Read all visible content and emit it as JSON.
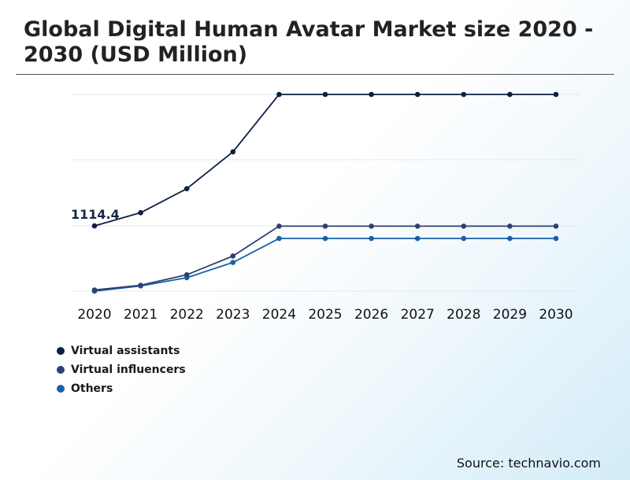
{
  "title": "Global Digital Human Avatar Market size 2020 - 2030 (USD Million)",
  "source": "Source: technavio.com",
  "colors": {
    "virtual_assistants": "#0c1f44",
    "virtual_influencers": "#2e4070",
    "others": "#1662a8",
    "grid": "#e3e8ee",
    "annotation": "#16254a"
  },
  "chart_data": {
    "type": "line",
    "title": "Global Digital Human Avatar Market size 2020 - 2030 (USD Million)",
    "xlabel": "",
    "ylabel": "",
    "categories": [
      "2020",
      "2021",
      "2022",
      "2023",
      "2024",
      "2025",
      "2026",
      "2027",
      "2028",
      "2029",
      "2030"
    ],
    "series": [
      {
        "name": "Virtual assistants",
        "color": "#0c1f44",
        "values": [
          1114.4,
          1340,
          1750,
          2380,
          3360,
          3360,
          3360,
          3360,
          3360,
          3360,
          3360
        ]
      },
      {
        "name": "Virtual influencers",
        "color": "#2e4070",
        "values": [
          20,
          100,
          280,
          600,
          1110,
          1110,
          1110,
          1110,
          1110,
          1110,
          1110
        ]
      },
      {
        "name": "Others",
        "color": "#1662a8",
        "values": [
          0,
          90,
          230,
          490,
          900,
          900,
          900,
          900,
          900,
          900,
          900
        ]
      }
    ],
    "annotations": [
      {
        "series": "Virtual assistants",
        "category": "2020",
        "text": "1114.4"
      }
    ],
    "ylim": [
      0,
      3400
    ],
    "grid": true,
    "y_tick_labels_shown": false,
    "legend_position": "bottom-left"
  }
}
